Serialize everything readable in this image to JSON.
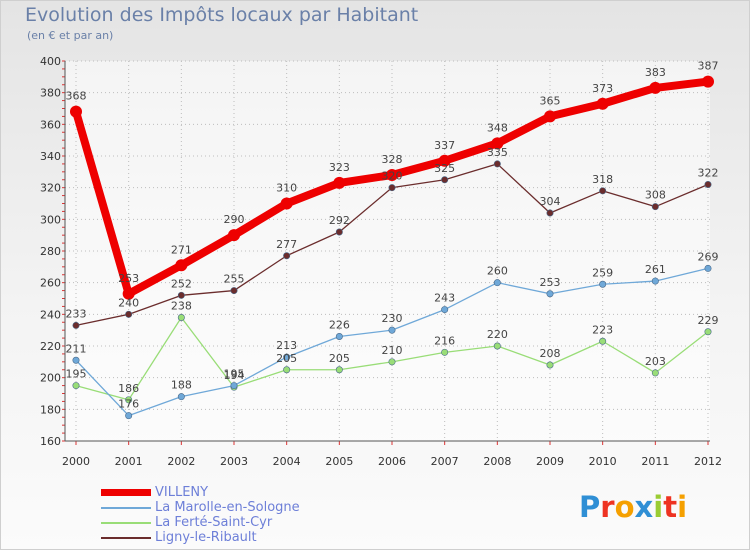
{
  "header": {
    "title": "Evolution des Impôts locaux par Habitant",
    "subtitle": "(en € et par an)"
  },
  "chart_data": {
    "type": "line",
    "title": "Evolution des Impôts locaux par Habitant",
    "subtitle": "(en € et par an)",
    "xlabel": "",
    "ylabel": "",
    "categories": [
      "2000",
      "2001",
      "2002",
      "2003",
      "2004",
      "2005",
      "2006",
      "2007",
      "2008",
      "2009",
      "2010",
      "2011",
      "2012"
    ],
    "ylim": [
      160,
      400
    ],
    "yticks": [
      160,
      180,
      200,
      220,
      240,
      260,
      280,
      300,
      320,
      340,
      360,
      380,
      400
    ],
    "grid": true,
    "legend": "bottom-left",
    "series": [
      {
        "name": "Ligny-le-Ribault",
        "color": "#6b2d2d",
        "values": [
          233,
          240,
          252,
          255,
          277,
          292,
          320,
          325,
          335,
          304,
          318,
          308,
          322
        ]
      },
      {
        "name": "La Ferté-Saint-Cyr",
        "color": "#99dd77",
        "values": [
          195,
          186,
          238,
          194,
          205,
          205,
          210,
          216,
          220,
          208,
          223,
          203,
          229
        ]
      },
      {
        "name": "La Marolle-en-Sologne",
        "color": "#6fa8d8",
        "values": [
          211,
          176,
          188,
          195,
          213,
          226,
          230,
          243,
          260,
          253,
          259,
          261,
          269
        ]
      },
      {
        "name": "VILLENY",
        "color": "#ee0000",
        "values": [
          368,
          253,
          271,
          290,
          310,
          323,
          328,
          337,
          348,
          365,
          373,
          383,
          387
        ]
      }
    ]
  },
  "legend": {
    "items": [
      {
        "label": "VILLENY",
        "color": "#ee0000"
      },
      {
        "label": "La Marolle-en-Sologne",
        "color": "#6fa8d8"
      },
      {
        "label": "La Ferté-Saint-Cyr",
        "color": "#99dd77"
      },
      {
        "label": "Ligny-le-Ribault",
        "color": "#6b2d2d"
      }
    ]
  },
  "logo": {
    "text": "Proxiti",
    "letters": [
      {
        "ch": "P",
        "color": "#2f8fd5"
      },
      {
        "ch": "r",
        "color": "#ee3322"
      },
      {
        "ch": "o",
        "color": "#f5a000"
      },
      {
        "ch": "x",
        "color": "#2f8fd5"
      },
      {
        "ch": "i",
        "color": "#9acc33"
      },
      {
        "ch": "t",
        "color": "#ee3322"
      },
      {
        "ch": "i",
        "color": "#f5a000"
      }
    ]
  }
}
